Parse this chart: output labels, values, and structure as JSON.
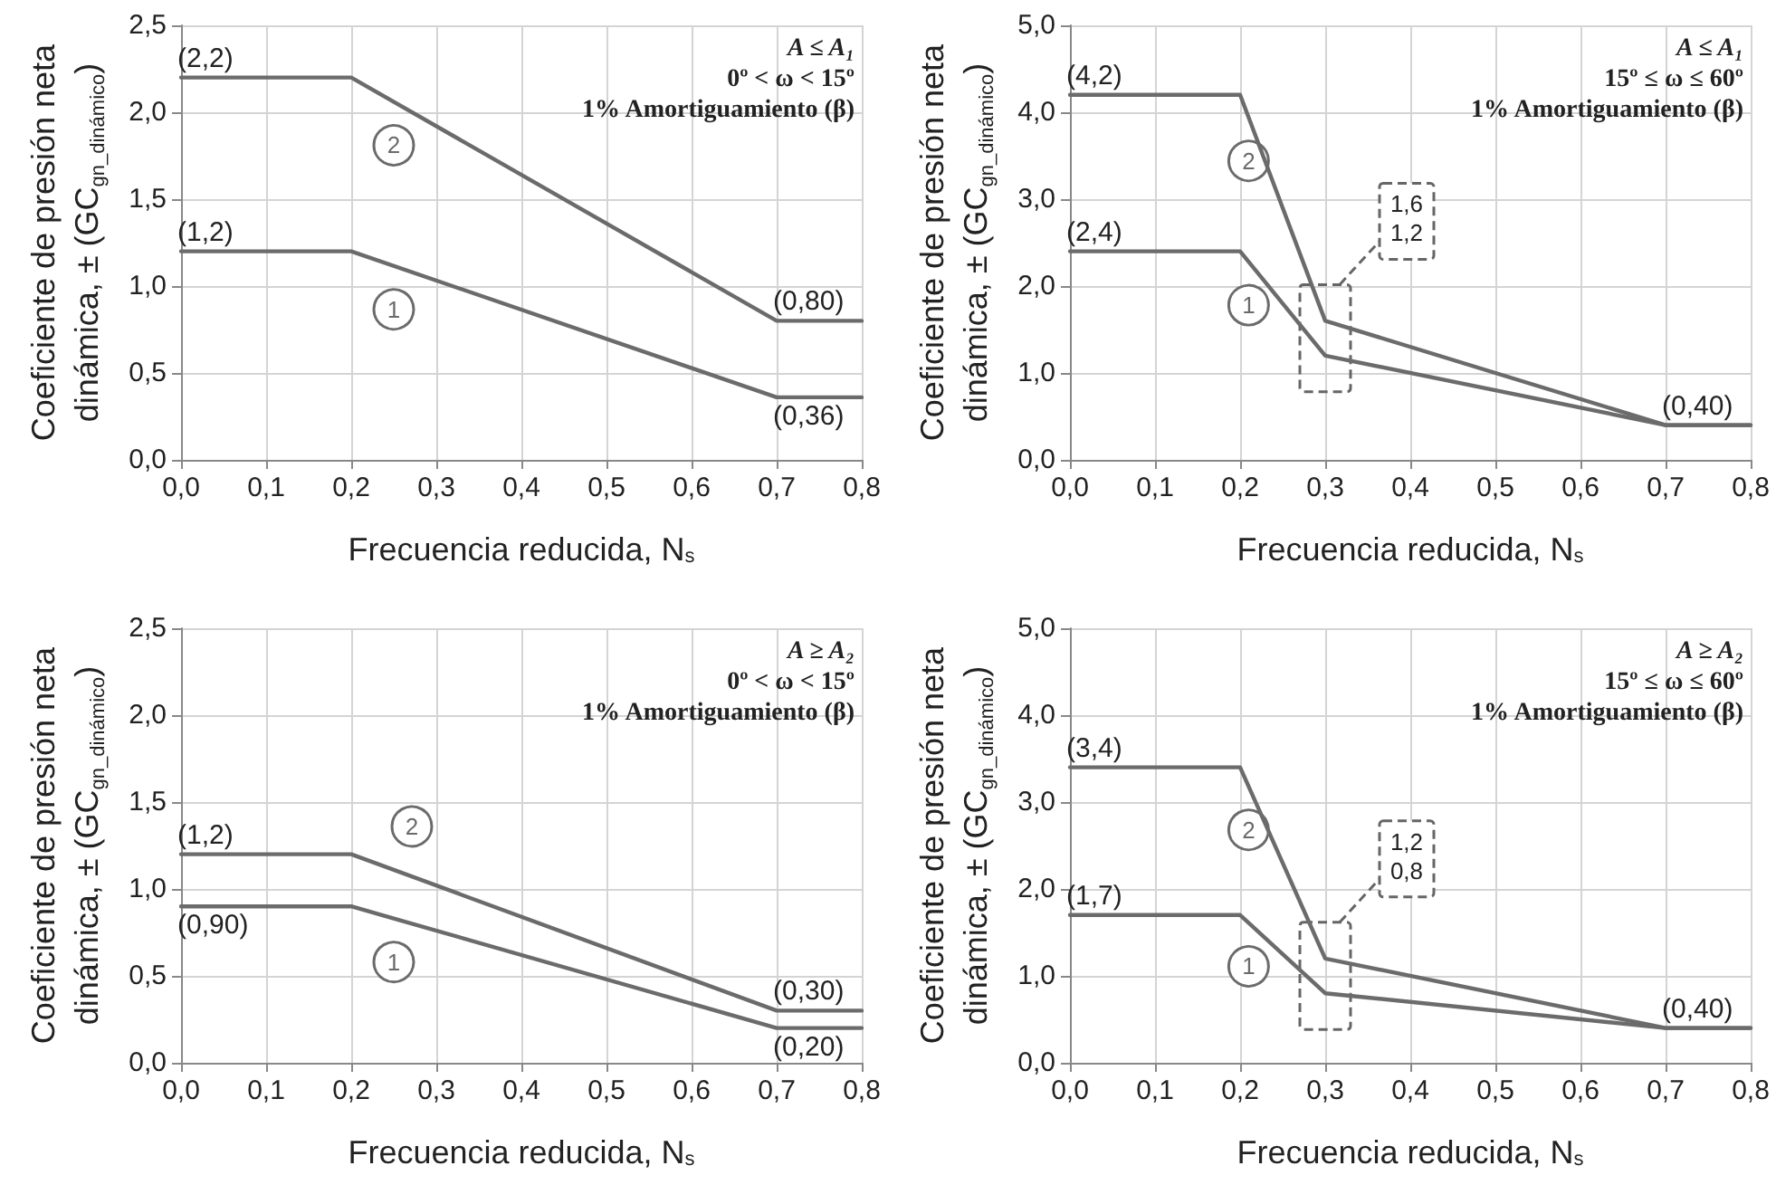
{
  "chart_data": [
    {
      "type": "line",
      "xlabel": "Frecuencia reducida, N$_{s}$",
      "ylabel": "Coeficiente de presión neta dinámica, ± (GC$_{gn_dinámico}$)",
      "grid": true,
      "marker": "none",
      "line_style": "solid",
      "xlim": [
        0,
        0.8
      ],
      "ylim": [
        0,
        2.5
      ],
      "xticks": [
        {
          "value": 0,
          "label": "0,0"
        },
        {
          "value": 0.1,
          "label": "0,1"
        },
        {
          "value": 0.2,
          "label": "0,2"
        },
        {
          "value": 0.3,
          "label": "0,3"
        },
        {
          "value": 0.4,
          "label": "0,4"
        },
        {
          "value": 0.5,
          "label": "0,5"
        },
        {
          "value": 0.6,
          "label": "0,6"
        },
        {
          "value": 0.7,
          "label": "0,7"
        },
        {
          "value": 0.8,
          "label": "0,8"
        }
      ],
      "yticks": [
        {
          "value": 0,
          "label": "0,0"
        },
        {
          "value": 0.5,
          "label": "0,5"
        },
        {
          "value": 1,
          "label": "1,0"
        },
        {
          "value": 1.5,
          "label": "1,5"
        },
        {
          "value": 2,
          "label": "2,0"
        },
        {
          "value": 2.5,
          "label": "2,5"
        }
      ],
      "x": [
        0,
        0.2,
        0.7,
        0.8
      ],
      "series": [
        {
          "name": "1",
          "color": "#6b6b6b",
          "values": [
            1.2,
            1.2,
            0.36,
            0.36
          ],
          "value_labels": [
            "(1,2)",
            null,
            "(0,36)",
            null
          ]
        },
        {
          "name": "2",
          "color": "#6b6b6b",
          "values": [
            2.2,
            2.2,
            0.8,
            0.8
          ],
          "value_labels": [
            "(2,2)",
            null,
            "(0,80)",
            null
          ]
        }
      ],
      "annotations": [
        "A ≤ A₁",
        "0º < ω < 15º",
        "1% Amortiguamiento (β)"
      ]
    },
    {
      "type": "line",
      "xlabel": "Frecuencia reducida, N$_{s}$",
      "ylabel": "Coeficiente de presión neta dinámica, ± (GC$_{gn_dinámico}$)",
      "grid": true,
      "marker": "none",
      "line_style": "solid",
      "xlim": [
        0,
        0.8
      ],
      "ylim": [
        0,
        5
      ],
      "xticks": [
        {
          "value": 0,
          "label": "0,0"
        },
        {
          "value": 0.1,
          "label": "0,1"
        },
        {
          "value": 0.2,
          "label": "0,2"
        },
        {
          "value": 0.3,
          "label": "0,3"
        },
        {
          "value": 0.4,
          "label": "0,4"
        },
        {
          "value": 0.5,
          "label": "0,5"
        },
        {
          "value": 0.6,
          "label": "0,6"
        },
        {
          "value": 0.7,
          "label": "0,7"
        },
        {
          "value": 0.8,
          "label": "0,8"
        }
      ],
      "yticks": [
        {
          "value": 0,
          "label": "0,0"
        },
        {
          "value": 1,
          "label": "1,0"
        },
        {
          "value": 2,
          "label": "2,0"
        },
        {
          "value": 3,
          "label": "3,0"
        },
        {
          "value": 4,
          "label": "4,0"
        },
        {
          "value": 5,
          "label": "5,0"
        }
      ],
      "x": [
        0,
        0.2,
        0.3,
        0.7,
        0.8
      ],
      "series": [
        {
          "name": "1",
          "color": "#6b6b6b",
          "values": [
            2.4,
            2.4,
            1.2,
            0.4,
            0.4
          ],
          "value_labels": [
            "(2,4)",
            null,
            null,
            null,
            null
          ]
        },
        {
          "name": "2",
          "color": "#6b6b6b",
          "values": [
            4.2,
            4.2,
            1.6,
            0.4,
            0.4
          ],
          "value_labels": [
            "(4,2)",
            null,
            null,
            "(0,40)",
            null
          ]
        }
      ],
      "annotations": [
        "A ≤ A₁",
        "15º ≤ ω ≤ 60º",
        "1% Amortiguamiento (β)",
        "1,6",
        "1,2"
      ]
    },
    {
      "type": "line",
      "xlabel": "Frecuencia reducida, N$_{s}$",
      "ylabel": "Coeficiente de presión neta dinámica, ± (GC$_{gn_dinámico}$)",
      "grid": true,
      "marker": "none",
      "line_style": "solid",
      "xlim": [
        0,
        0.8
      ],
      "ylim": [
        0,
        2.5
      ],
      "xticks": [
        {
          "value": 0,
          "label": "0,0"
        },
        {
          "value": 0.1,
          "label": "0,1"
        },
        {
          "value": 0.2,
          "label": "0,2"
        },
        {
          "value": 0.3,
          "label": "0,3"
        },
        {
          "value": 0.4,
          "label": "0,4"
        },
        {
          "value": 0.5,
          "label": "0,5"
        },
        {
          "value": 0.6,
          "label": "0,6"
        },
        {
          "value": 0.7,
          "label": "0,7"
        },
        {
          "value": 0.8,
          "label": "0,8"
        }
      ],
      "yticks": [
        {
          "value": 0,
          "label": "0,0"
        },
        {
          "value": 0.5,
          "label": "0,5"
        },
        {
          "value": 1,
          "label": "1,0"
        },
        {
          "value": 1.5,
          "label": "1,5"
        },
        {
          "value": 2,
          "label": "2,0"
        },
        {
          "value": 2.5,
          "label": "2,5"
        }
      ],
      "x": [
        0,
        0.2,
        0.7,
        0.8
      ],
      "series": [
        {
          "name": "1",
          "color": "#6b6b6b",
          "values": [
            0.9,
            0.9,
            0.2,
            0.2
          ],
          "value_labels": [
            "(0,90)",
            null,
            "(0,20)",
            null
          ]
        },
        {
          "name": "2",
          "color": "#6b6b6b",
          "values": [
            1.2,
            1.2,
            0.3,
            0.3
          ],
          "value_labels": [
            "(1,2)",
            null,
            "(0,30)",
            null
          ]
        }
      ],
      "annotations": [
        "A ≥ A₂",
        "0º < ω < 15º",
        "1% Amortiguamiento (β)"
      ]
    },
    {
      "type": "line",
      "xlabel": "Frecuencia reducida, N$_{s}$",
      "ylabel": "Coeficiente de presión neta dinámica, ± (GC$_{gn_dinámico}$)",
      "grid": true,
      "marker": "none",
      "line_style": "solid",
      "xlim": [
        0,
        0.8
      ],
      "ylim": [
        0,
        5
      ],
      "xticks": [
        {
          "value": 0,
          "label": "0,0"
        },
        {
          "value": 0.1,
          "label": "0,1"
        },
        {
          "value": 0.2,
          "label": "0,2"
        },
        {
          "value": 0.3,
          "label": "0,3"
        },
        {
          "value": 0.4,
          "label": "0,4"
        },
        {
          "value": 0.5,
          "label": "0,5"
        },
        {
          "value": 0.6,
          "label": "0,6"
        },
        {
          "value": 0.7,
          "label": "0,7"
        },
        {
          "value": 0.8,
          "label": "0,8"
        }
      ],
      "yticks": [
        {
          "value": 0,
          "label": "0,0"
        },
        {
          "value": 1,
          "label": "1,0"
        },
        {
          "value": 2,
          "label": "2,0"
        },
        {
          "value": 3,
          "label": "3,0"
        },
        {
          "value": 4,
          "label": "4,0"
        },
        {
          "value": 5,
          "label": "5,0"
        }
      ],
      "x": [
        0,
        0.2,
        0.3,
        0.7,
        0.8
      ],
      "series": [
        {
          "name": "1",
          "color": "#6b6b6b",
          "values": [
            1.7,
            1.7,
            0.8,
            0.4,
            0.4
          ],
          "value_labels": [
            "(1,7)",
            null,
            null,
            null,
            null
          ]
        },
        {
          "name": "2",
          "color": "#6b6b6b",
          "values": [
            3.4,
            3.4,
            1.2,
            0.4,
            0.4
          ],
          "value_labels": [
            "(3,4)",
            null,
            null,
            "(0,40)",
            null
          ]
        }
      ],
      "annotations": [
        "A ≥ A₂",
        "15º ≤ ω ≤ 60º",
        "1% Amortiguamiento (β)",
        "1,2",
        "0,8"
      ]
    }
  ]
}
